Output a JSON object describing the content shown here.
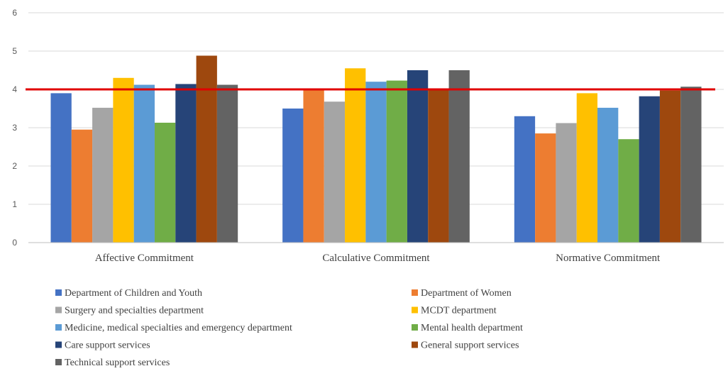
{
  "chart_data": {
    "type": "bar",
    "title": "",
    "xlabel": "",
    "ylabel": "",
    "ylim": [
      0,
      6
    ],
    "yticks": [
      0,
      1,
      2,
      3,
      4,
      5,
      6
    ],
    "grid": true,
    "legend_position": "bottom",
    "categories": [
      "Affective Commitment",
      "Calculative Commitment",
      "Normative Commitment"
    ],
    "series": [
      {
        "name": "Department of Children and Youth",
        "color": "#4472C4",
        "values": [
          3.9,
          3.5,
          3.3
        ]
      },
      {
        "name": "Department of Women",
        "color": "#ED7D31",
        "values": [
          2.95,
          4.0,
          2.85
        ]
      },
      {
        "name": "Surgery and specialties department",
        "color": "#A5A5A5",
        "values": [
          3.52,
          3.68,
          3.12
        ]
      },
      {
        "name": "MCDT department",
        "color": "#FFC000",
        "values": [
          4.3,
          4.55,
          3.9
        ]
      },
      {
        "name": "Medicine, medical specialties and emergency department",
        "color": "#5B9BD5",
        "values": [
          4.12,
          4.2,
          3.52
        ]
      },
      {
        "name": "Mental health department",
        "color": "#70AD47",
        "values": [
          3.13,
          4.23,
          2.7
        ]
      },
      {
        "name": "Care support services",
        "color": "#264478",
        "values": [
          4.14,
          4.5,
          3.82
        ]
      },
      {
        "name": "General support services",
        "color": "#9E480E",
        "values": [
          4.88,
          4.02,
          3.97
        ]
      },
      {
        "name": "Technical support services",
        "color": "#636363",
        "values": [
          4.12,
          4.5,
          4.07
        ]
      }
    ],
    "reference_line": {
      "value": 4.0,
      "color": "#E00000"
    }
  }
}
